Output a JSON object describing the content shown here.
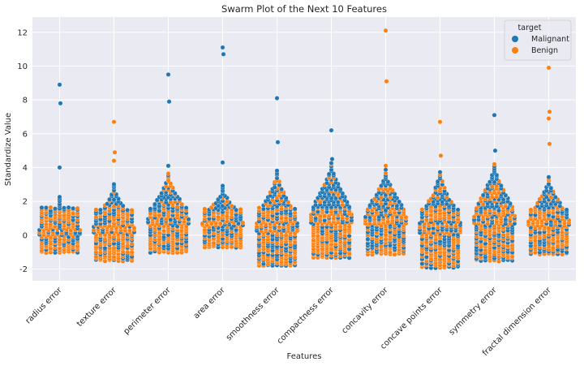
{
  "chart_data": {
    "type": "swarm",
    "title": "Swarm Plot of the Next 10 Features",
    "xlabel": "Features",
    "ylabel": "Standardize Value",
    "categories": [
      "radius error",
      "texture error",
      "perimeter error",
      "area error",
      "smoothness error",
      "compactness error",
      "concavity error",
      "concave points error",
      "symmetry error",
      "fractal dimension error"
    ],
    "ylim": [
      -2.7,
      12.9
    ],
    "yticks": [
      -2,
      0,
      2,
      4,
      6,
      8,
      10,
      12
    ],
    "grid": true,
    "legend": {
      "title": "target",
      "position": "top-right"
    },
    "series": [
      {
        "name": "Malignant",
        "color": "#1f77b4"
      },
      {
        "name": "Benign",
        "color": "#ff7f0e"
      }
    ],
    "notable_points": [
      {
        "category": "radius error",
        "values": [
          8.9,
          7.8,
          4.0
        ],
        "series": "Malignant"
      },
      {
        "category": "texture error",
        "values": [
          6.7,
          4.9,
          4.4
        ],
        "series": "Benign"
      },
      {
        "category": "perimeter error",
        "values": [
          9.5,
          7.9,
          4.1
        ],
        "series": "Malignant"
      },
      {
        "category": "area error",
        "values": [
          11.1,
          10.7,
          4.3
        ],
        "series": "Malignant"
      },
      {
        "category": "smoothness error",
        "values": [
          8.1,
          5.5
        ],
        "series": "Malignant"
      },
      {
        "category": "compactness error",
        "values": [
          6.2,
          4.5
        ],
        "series": "Malignant"
      },
      {
        "category": "concavity error",
        "values": [
          12.1,
          9.1,
          4.1
        ],
        "series": "Benign"
      },
      {
        "category": "concave points error",
        "values": [
          6.7,
          4.7
        ],
        "series": "Benign"
      },
      {
        "category": "symmetry error",
        "values": [
          7.1,
          5.0
        ],
        "series": "Malignant"
      },
      {
        "category": "fractal dimension error",
        "values": [
          9.9,
          7.3,
          6.9,
          5.4
        ],
        "series": "Benign"
      }
    ],
    "distribution": [
      {
        "category": "radius error",
        "min": -1.0,
        "max": 2.3
      },
      {
        "category": "texture error",
        "min": -1.5,
        "max": 3.1
      },
      {
        "category": "perimeter error",
        "min": -1.0,
        "max": 3.7
      },
      {
        "category": "area error",
        "min": -0.7,
        "max": 3.0
      },
      {
        "category": "smoothness error",
        "min": -1.8,
        "max": 3.8
      },
      {
        "category": "compactness error",
        "min": -1.3,
        "max": 4.3
      },
      {
        "category": "concavity error",
        "min": -1.1,
        "max": 3.9
      },
      {
        "category": "concave points error",
        "min": -1.9,
        "max": 3.8
      },
      {
        "category": "symmetry error",
        "min": -1.5,
        "max": 4.3
      },
      {
        "category": "fractal dimension error",
        "min": -1.1,
        "max": 3.5
      }
    ]
  }
}
